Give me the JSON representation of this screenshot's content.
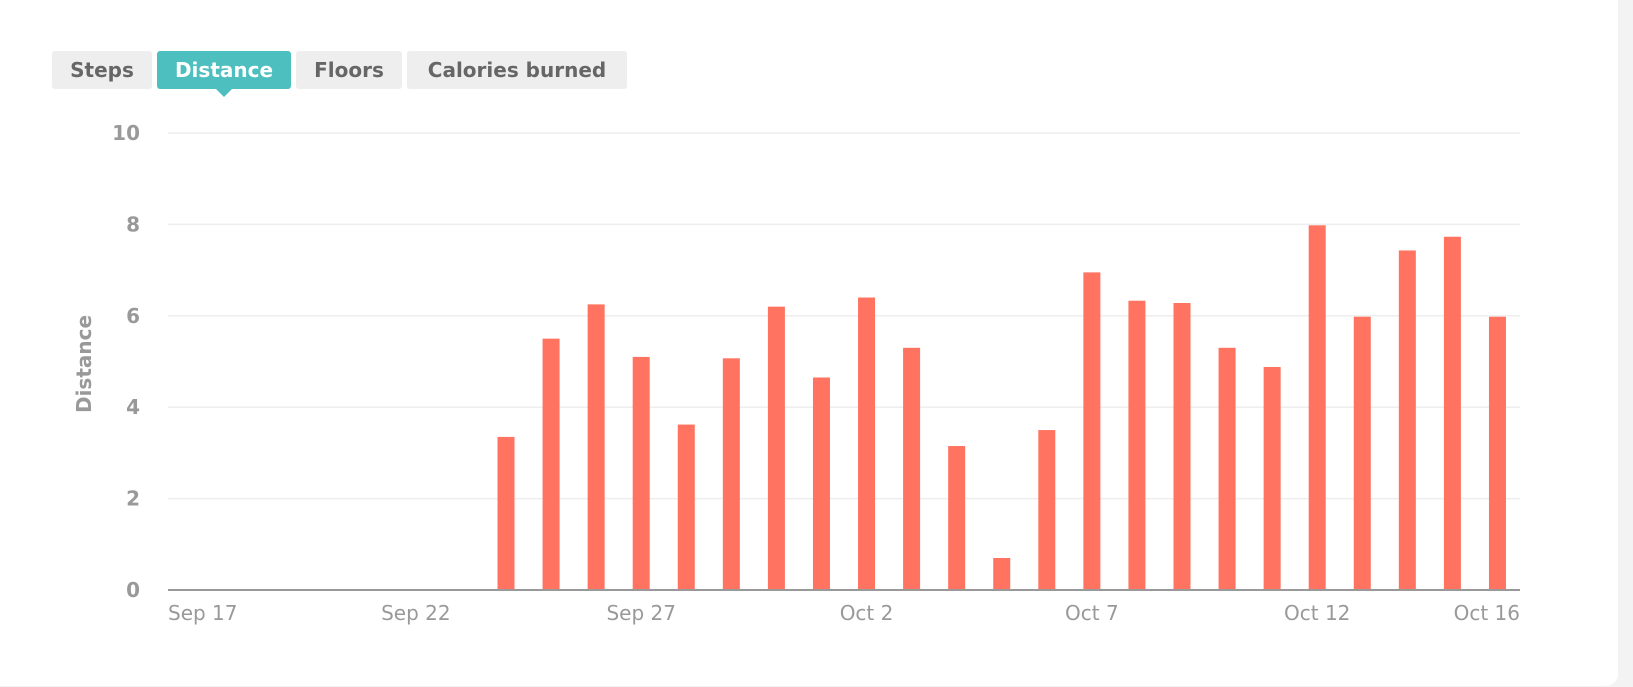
{
  "tabs": [
    {
      "label": "Steps",
      "active": false
    },
    {
      "label": "Distance",
      "active": true
    },
    {
      "label": "Floors",
      "active": false
    },
    {
      "label": "Calories burned",
      "active": false
    }
  ],
  "colors": {
    "bar": "#ff7360",
    "accent": "#4dbfbf",
    "grid": "#eeeeee",
    "axis_text": "#999999",
    "baseline": "#999999"
  },
  "chart_data": {
    "type": "bar",
    "title": "",
    "xlabel": "",
    "ylabel": "Distance",
    "ylim": [
      0,
      10
    ],
    "yticks": [
      0,
      2,
      4,
      6,
      8,
      10
    ],
    "grid": true,
    "xlim": [
      "Sep 17",
      "Oct 16"
    ],
    "xtick_labels": [
      "Sep 17",
      "Sep 22",
      "Sep 27",
      "Oct 2",
      "Oct 7",
      "Oct 12",
      "Oct 16"
    ],
    "categories": [
      "Sep 17",
      "Sep 18",
      "Sep 19",
      "Sep 20",
      "Sep 21",
      "Sep 22",
      "Sep 23",
      "Sep 24",
      "Sep 25",
      "Sep 26",
      "Sep 27",
      "Sep 28",
      "Sep 29",
      "Sep 30",
      "Oct 1",
      "Oct 2",
      "Oct 3",
      "Oct 4",
      "Oct 5",
      "Oct 6",
      "Oct 7",
      "Oct 8",
      "Oct 9",
      "Oct 10",
      "Oct 11",
      "Oct 12",
      "Oct 13",
      "Oct 14",
      "Oct 15",
      "Oct 16"
    ],
    "values": [
      0,
      0,
      0,
      0,
      0,
      0,
      0,
      3.35,
      5.5,
      6.25,
      5.1,
      3.62,
      5.07,
      6.2,
      4.65,
      6.4,
      5.3,
      3.15,
      0.7,
      3.5,
      6.95,
      6.33,
      6.28,
      5.3,
      4.88,
      7.98,
      5.98,
      7.43,
      7.73,
      5.98
    ]
  }
}
